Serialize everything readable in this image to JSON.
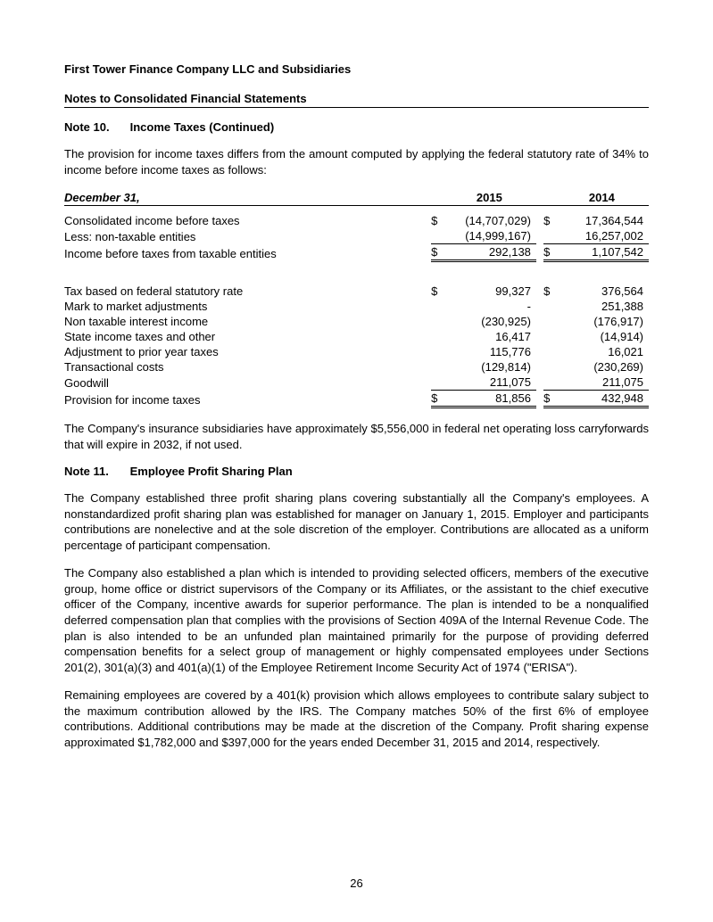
{
  "company": "First Tower Finance Company LLC and Subsidiaries",
  "section": "Notes to Consolidated Financial Statements",
  "page_number": "26",
  "note10": {
    "number": "Note 10.",
    "title": "Income Taxes (Continued)",
    "intro": "The provision for income taxes differs from the amount computed by applying the federal statutory rate of 34% to income before income taxes as follows:",
    "table": {
      "date_label": "December 31,",
      "years": [
        "2015",
        "2014"
      ],
      "block1": [
        {
          "label": "Consolidated income before taxes",
          "sym": "$",
          "v2015": "(14,707,029)",
          "sym2": "$",
          "v2014": "17,364,544"
        },
        {
          "label": "Less:  non-taxable entities",
          "sym": "",
          "v2015": "(14,999,167)",
          "sym2": "",
          "v2014": "16,257,002"
        }
      ],
      "block1_total": {
        "label": "Income before taxes from taxable entities",
        "sym": "$",
        "v2015": "292,138",
        "sym2": "$",
        "v2014": "1,107,542"
      },
      "block2": [
        {
          "label": "Tax based on federal statutory rate",
          "sym": "$",
          "v2015": "99,327",
          "sym2": "$",
          "v2014": "376,564"
        },
        {
          "label": "Mark to market adjustments",
          "sym": "",
          "v2015": "-",
          "sym2": "",
          "v2014": "251,388"
        },
        {
          "label": "Non taxable interest income",
          "sym": "",
          "v2015": "(230,925)",
          "sym2": "",
          "v2014": "(176,917)"
        },
        {
          "label": "State income taxes and other",
          "sym": "",
          "v2015": "16,417",
          "sym2": "",
          "v2014": "(14,914)"
        },
        {
          "label": "Adjustment to prior year taxes",
          "sym": "",
          "v2015": "115,776",
          "sym2": "",
          "v2014": "16,021"
        },
        {
          "label": "Transactional costs",
          "sym": "",
          "v2015": "(129,814)",
          "sym2": "",
          "v2014": "(230,269)"
        },
        {
          "label": "Goodwill",
          "sym": "",
          "v2015": "211,075",
          "sym2": "",
          "v2014": "211,075"
        }
      ],
      "block2_total": {
        "label": "Provision for income taxes",
        "sym": "$",
        "v2015": "81,856",
        "sym2": "$",
        "v2014": "432,948"
      }
    },
    "outro": "The Company's insurance subsidiaries have approximately $5,556,000 in federal net operating loss carryforwards that will expire in 2032, if not used."
  },
  "note11": {
    "number": "Note 11.",
    "title": "Employee Profit Sharing Plan",
    "p1": "The Company established three profit sharing plans covering substantially all the Company's employees. A nonstandardized profit sharing plan was established for manager on January 1, 2015. Employer and participants contributions are nonelective and at the sole discretion of the employer. Contributions are allocated as a uniform percentage of participant compensation.",
    "p2": "The Company also established a plan which is intended to providing selected officers, members of the executive group, home office or district supervisors of the Company or its Affiliates, or the assistant to the chief executive officer of the Company, incentive awards for superior performance. The plan is intended to be a nonqualified deferred compensation plan that complies with the provisions of Section 409A of the Internal Revenue Code. The plan is also intended to be an unfunded plan maintained primarily for the purpose of providing deferred compensation benefits for a select group of management or highly compensated employees under Sections 201(2), 301(a)(3) and 401(a)(1) of the Employee Retirement Income Security Act of 1974 (\"ERISA\").",
    "p3": "Remaining employees are covered by a 401(k) provision which allows employees to contribute salary subject to the maximum contribution allowed by the IRS. The Company matches 50% of the first 6% of employee contributions. Additional contributions may be made at the discretion of the Company. Profit sharing expense approximated $1,782,000 and $397,000 for the years ended December 31, 2015 and 2014, respectively."
  }
}
